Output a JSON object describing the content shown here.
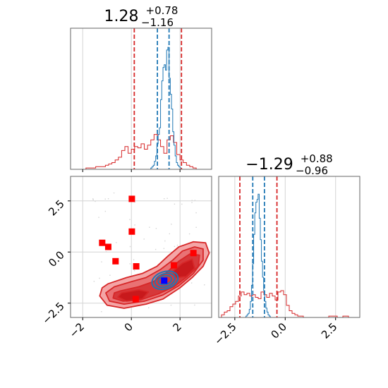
{
  "chart_data": [
    {
      "panel": "marginal-1",
      "type": "histogram",
      "title": {
        "base": "1.28",
        "sup": "+0.78",
        "sub": "−1.16"
      },
      "xlim": [
        -2.5,
        3.3
      ],
      "grid": true,
      "red_lines": [
        0.12,
        2.06
      ],
      "blue_lines": [
        1.07,
        1.55
      ],
      "blue_hist": {
        "start": 0.8,
        "width": 0.05,
        "heights": [
          0.01,
          0.02,
          0.03,
          0.06,
          0.1,
          0.19,
          0.26,
          0.31,
          0.52,
          0.66,
          0.76,
          0.78,
          0.74,
          0.89,
          0.91,
          0.68,
          0.56,
          0.45,
          0.28,
          0.18,
          0.1,
          0.05,
          0.03,
          0.02,
          0.01
        ]
      },
      "red_hist": {
        "start": -2.0,
        "width": 0.1333,
        "heights": [
          0.0,
          0.01,
          0.01,
          0.01,
          0.02,
          0.02,
          0.02,
          0.03,
          0.04,
          0.05,
          0.07,
          0.09,
          0.14,
          0.17,
          0.12,
          0.15,
          0.17,
          0.16,
          0.19,
          0.15,
          0.18,
          0.22,
          0.26,
          0.22,
          0.17,
          0.12,
          0.22,
          0.25,
          0.2,
          0.11,
          0.07,
          0.05,
          0.03,
          0.02,
          0.01,
          0.0,
          0.0,
          0.0,
          0.0,
          0.0
        ]
      }
    },
    {
      "panel": "joint",
      "type": "contour-scatter",
      "xlim": [
        -2.5,
        3.3
      ],
      "ylim": [
        -3.2,
        3.7
      ],
      "grid": true,
      "x_ticks": [
        {
          "v": -2,
          "label": "−2"
        },
        {
          "v": 0,
          "label": "0"
        },
        {
          "v": 2,
          "label": "2"
        }
      ],
      "y_ticks": [
        {
          "v": 2.5,
          "label": "2.5"
        },
        {
          "v": 0,
          "label": "0.0"
        },
        {
          "v": -2.5,
          "label": "−2.5"
        }
      ],
      "red_markers": [
        [
          -1.2,
          0.45
        ],
        [
          -0.95,
          0.25
        ],
        [
          -0.65,
          -0.45
        ],
        [
          0.02,
          2.6
        ],
        [
          0.02,
          1.0
        ],
        [
          0.2,
          -0.7
        ],
        [
          0.18,
          -2.3
        ],
        [
          1.75,
          -0.65
        ],
        [
          2.55,
          -0.05
        ]
      ],
      "blue_markers": [
        [
          1.35,
          -1.4
        ]
      ],
      "red_regions": [
        {
          "level": "outer",
          "points": [
            [
              -0.95,
              -1.55
            ],
            [
              -0.2,
              -1.25
            ],
            [
              0.45,
              -1.05
            ],
            [
              1.05,
              -0.7
            ],
            [
              1.5,
              -0.2
            ],
            [
              1.95,
              0.25
            ],
            [
              2.55,
              0.5
            ],
            [
              3.05,
              0.45
            ],
            [
              3.2,
              -0.05
            ],
            [
              2.95,
              -0.7
            ],
            [
              2.5,
              -1.25
            ],
            [
              2.0,
              -1.75
            ],
            [
              1.3,
              -2.3
            ],
            [
              0.6,
              -2.55
            ],
            [
              -0.3,
              -2.75
            ],
            [
              -1.0,
              -2.6
            ],
            [
              -1.3,
              -2.15
            ],
            [
              -1.2,
              -1.75
            ]
          ]
        },
        {
          "level": "middle",
          "points": [
            [
              -0.7,
              -1.7
            ],
            [
              0.0,
              -1.45
            ],
            [
              0.6,
              -1.25
            ],
            [
              1.2,
              -0.85
            ],
            [
              1.7,
              -0.4
            ],
            [
              2.1,
              0.05
            ],
            [
              2.6,
              0.25
            ],
            [
              2.95,
              0.15
            ],
            [
              2.95,
              -0.4
            ],
            [
              2.55,
              -1.05
            ],
            [
              1.95,
              -1.65
            ],
            [
              1.3,
              -2.1
            ],
            [
              0.55,
              -2.4
            ],
            [
              -0.3,
              -2.55
            ],
            [
              -0.9,
              -2.4
            ],
            [
              -1.05,
              -2.0
            ]
          ]
        },
        {
          "level": "inner",
          "points": [
            [
              -0.45,
              -1.9
            ],
            [
              0.3,
              -1.7
            ],
            [
              0.9,
              -1.45
            ],
            [
              1.45,
              -1.0
            ],
            [
              1.95,
              -0.45
            ],
            [
              2.4,
              -0.1
            ],
            [
              2.8,
              -0.15
            ],
            [
              2.75,
              -0.7
            ],
            [
              2.3,
              -1.2
            ],
            [
              1.75,
              -1.7
            ],
            [
              1.1,
              -2.05
            ],
            [
              0.35,
              -2.35
            ],
            [
              -0.35,
              -2.4
            ],
            [
              -0.75,
              -2.25
            ],
            [
              -0.7,
              -2.0
            ]
          ]
        },
        {
          "level": "core-a",
          "points": [
            [
              -0.4,
              -2.0
            ],
            [
              0.3,
              -1.85
            ],
            [
              0.7,
              -1.95
            ],
            [
              0.45,
              -2.3
            ],
            [
              -0.2,
              -2.4
            ],
            [
              -0.55,
              -2.2
            ]
          ]
        },
        {
          "level": "core-b",
          "points": [
            [
              1.7,
              -0.95
            ],
            [
              2.1,
              -0.55
            ],
            [
              2.5,
              -0.35
            ],
            [
              2.6,
              -0.8
            ],
            [
              2.25,
              -1.2
            ],
            [
              1.85,
              -1.25
            ]
          ]
        }
      ],
      "blue_contours": [
        {
          "cx": 1.38,
          "cy": -1.38,
          "rx": 0.55,
          "ry": 0.42
        },
        {
          "cx": 1.38,
          "cy": -1.38,
          "rx": 0.42,
          "ry": 0.32
        },
        {
          "cx": 1.38,
          "cy": -1.38,
          "rx": 0.28,
          "ry": 0.21
        }
      ]
    },
    {
      "panel": "marginal-2",
      "type": "histogram",
      "title": {
        "base": "−1.29",
        "sup": "+0.88",
        "sub": "−0.96"
      },
      "xlim": [
        -3.3,
        3.7
      ],
      "grid": true,
      "x_ticks": [
        {
          "v": -2.5,
          "label": "−2.5"
        },
        {
          "v": 0,
          "label": "0.0"
        },
        {
          "v": 2.5,
          "label": "2.5"
        }
      ],
      "red_lines": [
        -2.25,
        -0.41
      ],
      "blue_lines": [
        -1.61,
        -1.03
      ],
      "blue_hist": {
        "start": -1.95,
        "width": 0.055,
        "heights": [
          0.01,
          0.02,
          0.03,
          0.06,
          0.12,
          0.24,
          0.4,
          0.62,
          0.78,
          0.86,
          0.88,
          0.92,
          0.74,
          0.58,
          0.42,
          0.3,
          0.2,
          0.12,
          0.07,
          0.04,
          0.02,
          0.01
        ]
      },
      "red_hist": {
        "start": -3.3,
        "width": 0.14,
        "heights": [
          0.0,
          0.02,
          0.04,
          0.05,
          0.08,
          0.1,
          0.12,
          0.16,
          0.19,
          0.17,
          0.18,
          0.16,
          0.17,
          0.15,
          0.14,
          0.19,
          0.17,
          0.15,
          0.18,
          0.16,
          0.13,
          0.19,
          0.2,
          0.17,
          0.09,
          0.05,
          0.03,
          0.02,
          0.01,
          0.01,
          0.0,
          0.0,
          0.0,
          0.0,
          0.0,
          0.0,
          0.0,
          0.0,
          0.0,
          0.01,
          0.01,
          0.01,
          0.0,
          0.0,
          0.01,
          0.01,
          0.0,
          0.0,
          0.0,
          0.0
        ]
      }
    }
  ],
  "colors": {
    "red": "#d62728",
    "blue": "#1f77b4",
    "marker_red": "#ff0000",
    "marker_blue": "#0000ff",
    "grid": "#d4d4d4",
    "axis": "#666666"
  }
}
